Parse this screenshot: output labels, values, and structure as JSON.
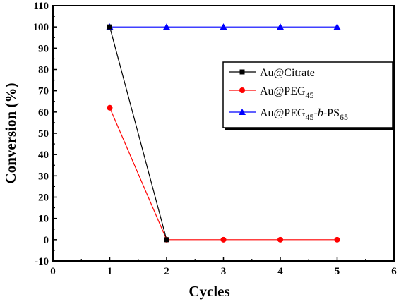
{
  "chart_data": {
    "type": "line",
    "xlabel": "Cycles",
    "ylabel": "Conversion (%)",
    "xlim": [
      0,
      6
    ],
    "ylim": [
      -10,
      110
    ],
    "xticks": [
      0,
      1,
      2,
      3,
      4,
      5,
      6
    ],
    "yticks": [
      -10,
      0,
      10,
      20,
      30,
      40,
      50,
      60,
      70,
      80,
      90,
      100,
      110
    ],
    "grid": false,
    "legend_position": "upper-right",
    "series": [
      {
        "name": "Au@Citrate",
        "color": "#000000",
        "marker": "square",
        "x": [
          1,
          2
        ],
        "y": [
          100,
          0
        ]
      },
      {
        "name": "Au@PEG45",
        "label_parts": [
          {
            "text": "Au@PEG",
            "style": "normal"
          },
          {
            "text": "45",
            "style": "sub"
          }
        ],
        "color": "#ff0000",
        "marker": "circle",
        "x": [
          1,
          2,
          3,
          4,
          5
        ],
        "y": [
          62,
          0,
          0,
          0,
          0
        ]
      },
      {
        "name": "Au@PEG45-b-PS65",
        "label_parts": [
          {
            "text": "Au@PEG",
            "style": "normal"
          },
          {
            "text": "45",
            "style": "sub"
          },
          {
            "text": "-",
            "style": "normal"
          },
          {
            "text": "b",
            "style": "italic"
          },
          {
            "text": "-PS",
            "style": "normal"
          },
          {
            "text": "65",
            "style": "sub"
          }
        ],
        "color": "#0000ff",
        "marker": "triangle",
        "x": [
          1,
          2,
          3,
          4,
          5
        ],
        "y": [
          100,
          100,
          100,
          100,
          100
        ]
      }
    ]
  }
}
